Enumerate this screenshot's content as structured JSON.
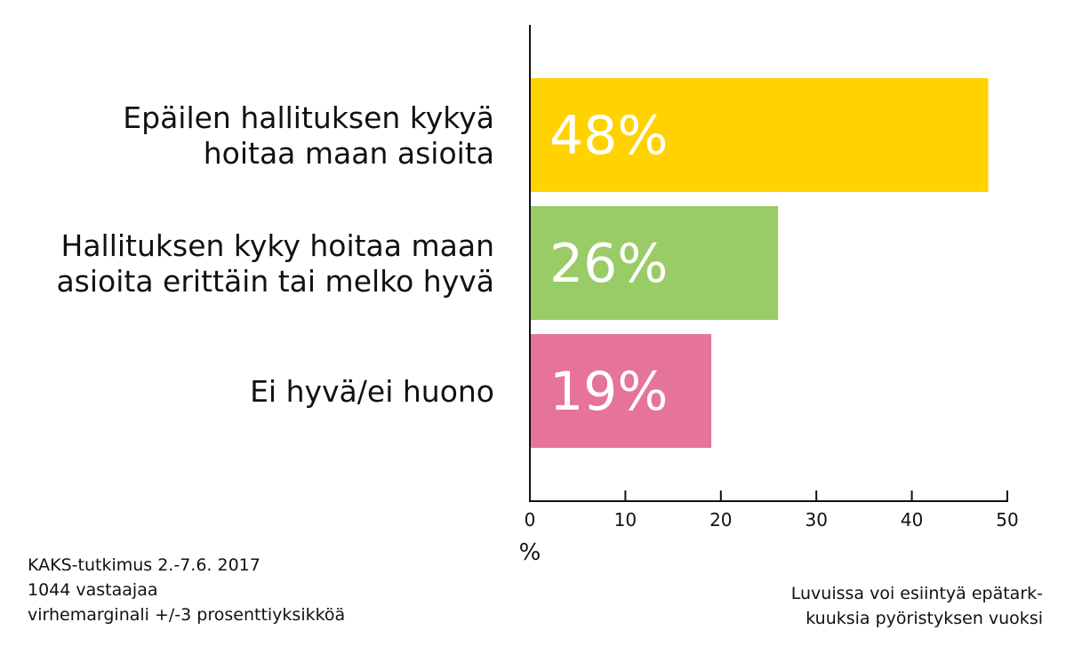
{
  "chart_data": {
    "type": "bar",
    "orientation": "horizontal",
    "categories": [
      [
        "Epäilen hallituksen kykyä",
        "hoitaa maan asioita"
      ],
      [
        "Hallituksen kyky hoitaa maan",
        "asioita erittäin tai melko hyvä"
      ],
      [
        "Ei hyvä/ei huono"
      ]
    ],
    "values": [
      48,
      26,
      19
    ],
    "data_labels": [
      "48%",
      "26%",
      "19%"
    ],
    "colors": [
      "#FFD200",
      "#99CC66",
      "#E5739C"
    ],
    "xlim": [
      0,
      50
    ],
    "xticks": [
      0,
      10,
      20,
      30,
      40,
      50
    ],
    "xlabel": "%",
    "grid": false
  },
  "notes": {
    "source": [
      "KAKS-tutkimus 2.-7.6. 2017",
      "1044 vastaajaa",
      "virhemarginali +/-3 prosenttiyksikköä"
    ],
    "rounding": [
      "Luvuissa voi esiintyä epätark-",
      "kuuksia pyöristyksen vuoksi"
    ]
  }
}
